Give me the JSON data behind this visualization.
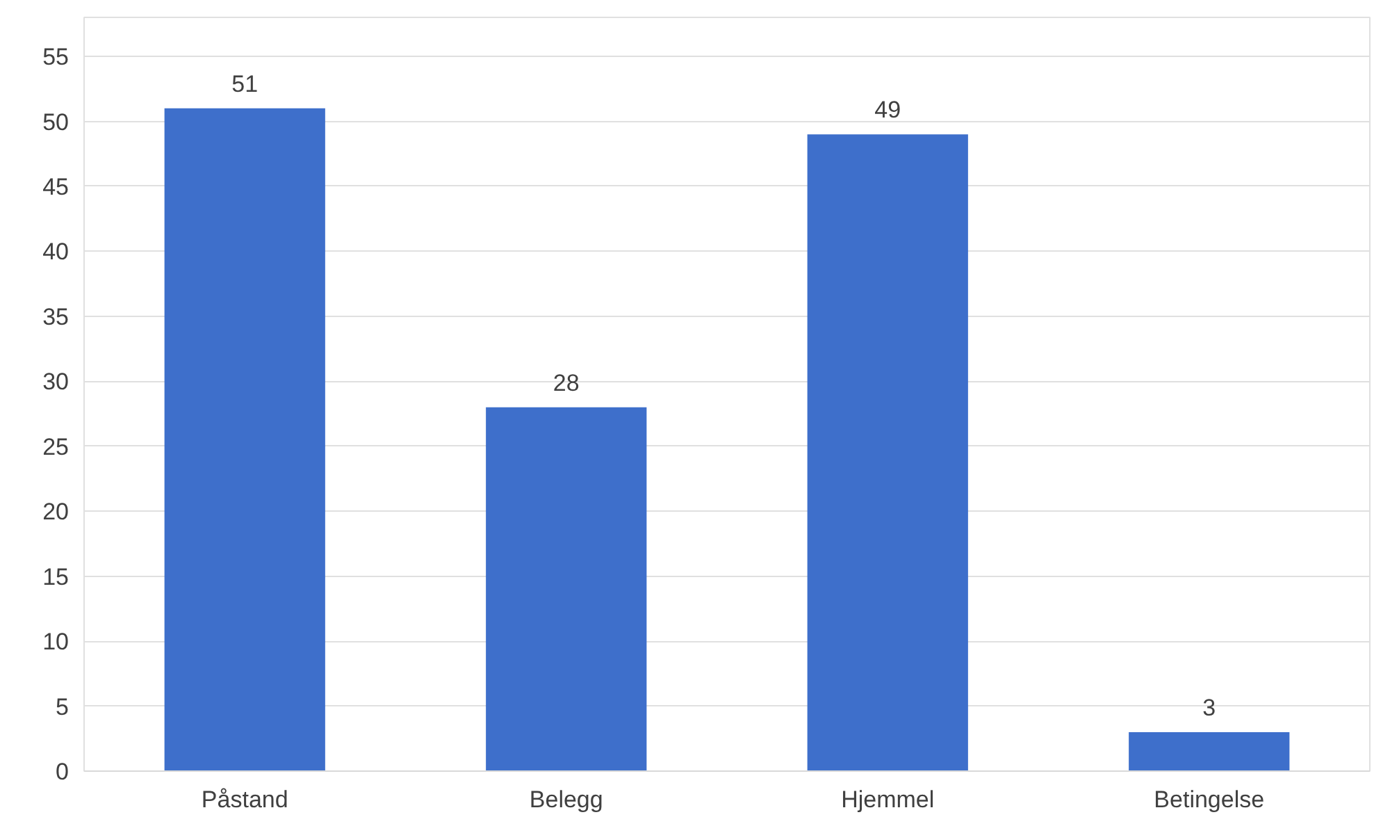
{
  "chart_data": {
    "type": "bar",
    "categories": [
      "Påstand",
      "Belegg",
      "Hjemmel",
      "Betingelse"
    ],
    "values": [
      51,
      28,
      49,
      3
    ],
    "color": "#3e6fcb",
    "ylim": [
      0,
      58
    ],
    "yticks": [
      0,
      5,
      10,
      15,
      20,
      25,
      30,
      35,
      40,
      45,
      50,
      55
    ],
    "grid": "y",
    "data_labels": true
  }
}
